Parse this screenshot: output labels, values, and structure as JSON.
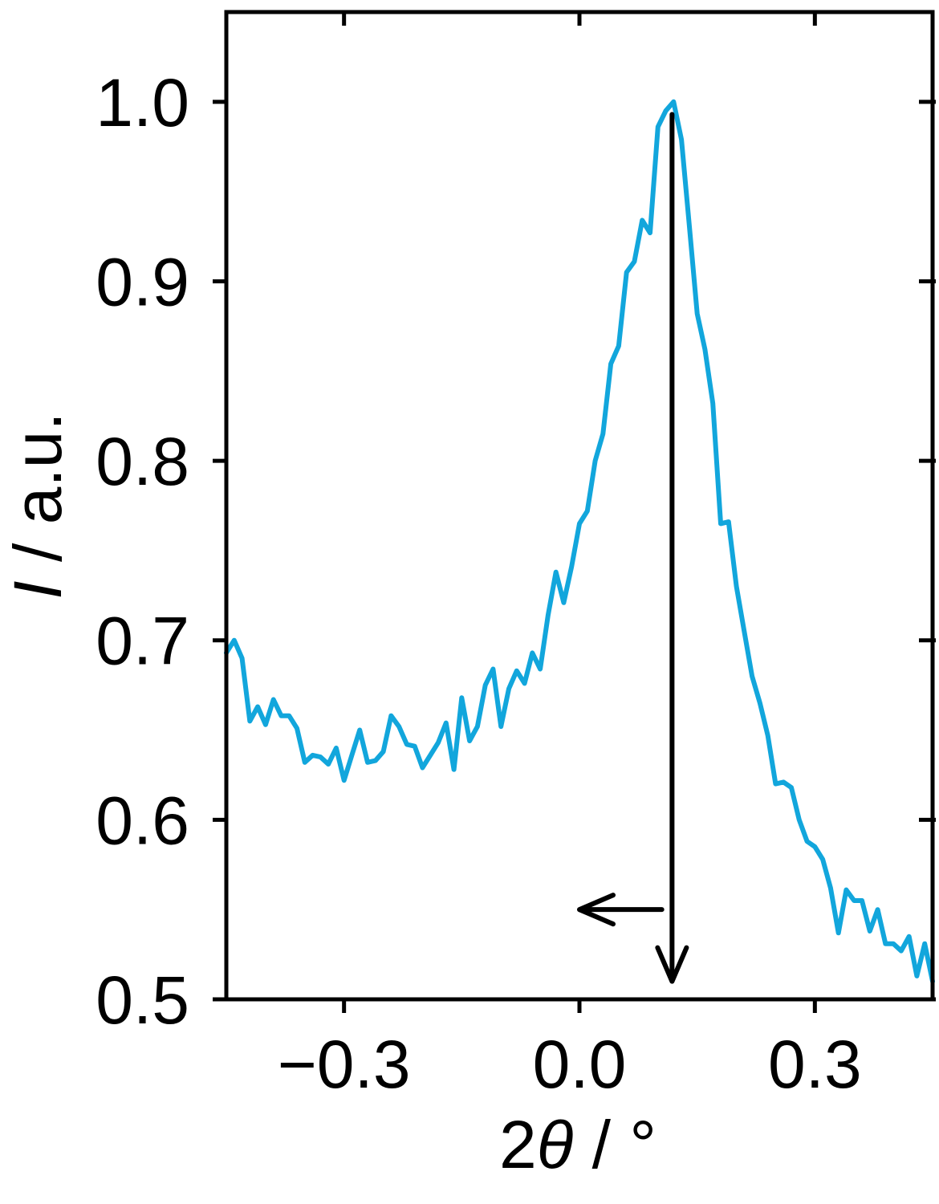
{
  "chart_data": {
    "type": "line",
    "xlabel_number": "2",
    "xlabel_symbol": "θ",
    "xlabel_unit": " / °",
    "ylabel_symbol": "I",
    "ylabel_unit": " / a.u.",
    "xlim": [
      -0.45,
      0.45
    ],
    "ylim": [
      0.5,
      1.05
    ],
    "xticks": [
      -0.3,
      0.0,
      0.3
    ],
    "xtick_labels": [
      "−0.3",
      "0.0",
      "0.3"
    ],
    "yticks": [
      0.5,
      0.6,
      0.7,
      0.8,
      0.9,
      1.0
    ],
    "ytick_labels": [
      "0.5",
      "0.6",
      "0.7",
      "0.8",
      "0.9",
      "1.0"
    ],
    "grid": false,
    "line_color": "#12a6dc",
    "annotations": {
      "vertical_arrow": {
        "x": 0.118,
        "y_from": 0.993,
        "y_to": 0.51
      },
      "left_arrow": {
        "y": 0.55,
        "x_from": 0.105,
        "x_to": 0.0
      }
    },
    "series": [
      {
        "x": [
          -0.45,
          -0.44,
          -0.43,
          -0.42,
          -0.41,
          -0.4,
          -0.39,
          -0.38,
          -0.37,
          -0.36,
          -0.35,
          -0.34,
          -0.33,
          -0.32,
          -0.31,
          -0.3,
          -0.29,
          -0.28,
          -0.27,
          -0.26,
          -0.25,
          -0.24,
          -0.23,
          -0.22,
          -0.21,
          -0.2,
          -0.19,
          -0.18,
          -0.17,
          -0.16,
          -0.15,
          -0.14,
          -0.13,
          -0.12,
          -0.11,
          -0.1,
          -0.09,
          -0.08,
          -0.07,
          -0.06,
          -0.05,
          -0.04,
          -0.03,
          -0.02,
          -0.01,
          0.0,
          0.01,
          0.02,
          0.03,
          0.04,
          0.05,
          0.06,
          0.07,
          0.08,
          0.09,
          0.1,
          0.11,
          0.12,
          0.13,
          0.14,
          0.15,
          0.16,
          0.17,
          0.18,
          0.19,
          0.2,
          0.21,
          0.22,
          0.23,
          0.24,
          0.25,
          0.26,
          0.27,
          0.28,
          0.29,
          0.3,
          0.31,
          0.32,
          0.33,
          0.34,
          0.35,
          0.36,
          0.37,
          0.38,
          0.39,
          0.4,
          0.41,
          0.42,
          0.43,
          0.44,
          0.45
        ],
        "y": [
          0.693,
          0.7,
          0.69,
          0.655,
          0.663,
          0.653,
          0.667,
          0.658,
          0.658,
          0.651,
          0.632,
          0.636,
          0.635,
          0.631,
          0.64,
          0.622,
          0.636,
          0.65,
          0.632,
          0.633,
          0.638,
          0.658,
          0.652,
          0.642,
          0.641,
          0.629,
          0.636,
          0.643,
          0.654,
          0.628,
          0.668,
          0.644,
          0.652,
          0.675,
          0.684,
          0.652,
          0.673,
          0.683,
          0.676,
          0.693,
          0.684,
          0.714,
          0.738,
          0.721,
          0.741,
          0.765,
          0.772,
          0.8,
          0.815,
          0.854,
          0.864,
          0.905,
          0.911,
          0.934,
          0.927,
          0.986,
          0.995,
          1.0,
          0.979,
          0.931,
          0.882,
          0.862,
          0.832,
          0.765,
          0.766,
          0.73,
          0.705,
          0.68,
          0.665,
          0.647,
          0.62,
          0.621,
          0.618,
          0.6,
          0.588,
          0.585,
          0.578,
          0.562,
          0.537,
          0.561,
          0.555,
          0.555,
          0.538,
          0.55,
          0.531,
          0.531,
          0.527,
          0.535,
          0.513,
          0.531,
          0.51
        ]
      }
    ]
  }
}
